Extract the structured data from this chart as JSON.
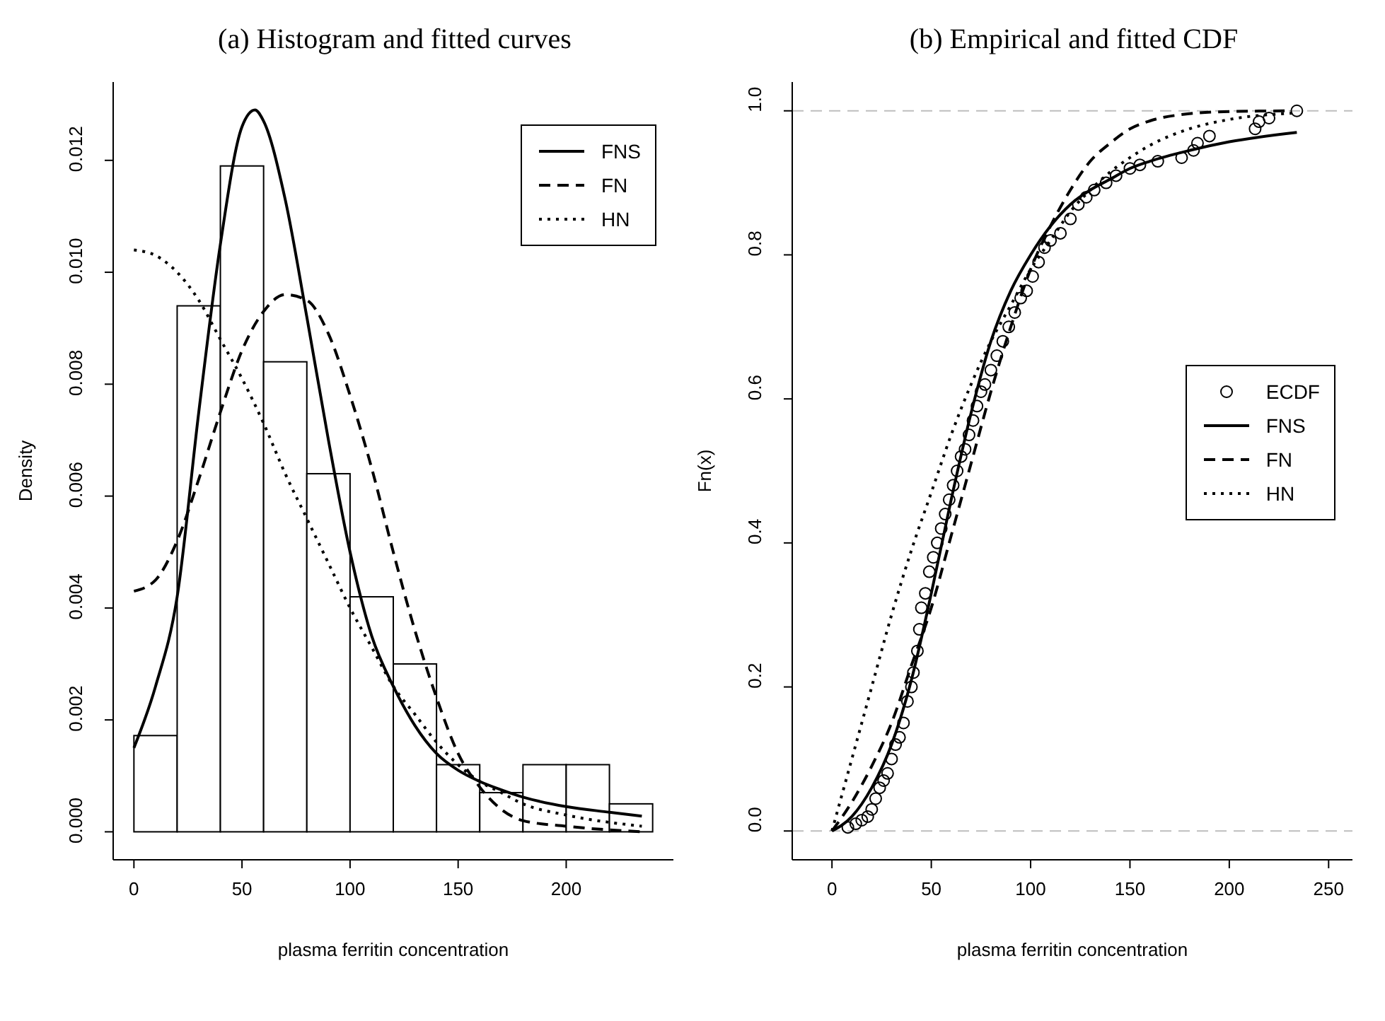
{
  "chart_data": [
    {
      "type": "histogram",
      "title": "(a) Histogram and fitted curves",
      "xlabel": "plasma ferritin concentration",
      "ylabel": "Density",
      "color": "#ffffff",
      "bins": [
        0,
        20,
        40,
        60,
        80,
        100,
        120,
        140,
        160,
        180,
        200,
        220,
        240
      ],
      "values": [
        0.00172,
        0.0094,
        0.0119,
        0.0084,
        0.0064,
        0.0042,
        0.003,
        0.0012,
        0.0007,
        0.0012,
        0.0012,
        0.0005
      ],
      "series": [
        {
          "name": "FNS",
          "type": "line",
          "line_style": "solid",
          "color": "#000000",
          "x": [
            0,
            10,
            20,
            30,
            40,
            50,
            56,
            60,
            70,
            80,
            90,
            100,
            110,
            120,
            130,
            140,
            150,
            160,
            170,
            180,
            200,
            220,
            235
          ],
          "values": [
            0.0015,
            0.0026,
            0.0042,
            0.0075,
            0.0105,
            0.0126,
            0.0129,
            0.0127,
            0.0113,
            0.0092,
            0.007,
            0.005,
            0.0035,
            0.0026,
            0.0019,
            0.0014,
            0.0011,
            0.0009,
            0.00075,
            0.00062,
            0.00045,
            0.00035,
            0.00028
          ]
        },
        {
          "name": "FN",
          "type": "line",
          "line_style": "dashed",
          "color": "#000000",
          "x": [
            0,
            10,
            20,
            30,
            40,
            50,
            60,
            70,
            80,
            90,
            100,
            110,
            120,
            130,
            140,
            150,
            160,
            170,
            180,
            200,
            235
          ],
          "values": [
            0.0043,
            0.0045,
            0.0052,
            0.0063,
            0.0075,
            0.0086,
            0.0093,
            0.0096,
            0.0095,
            0.0089,
            0.0078,
            0.0065,
            0.005,
            0.0036,
            0.0024,
            0.0014,
            0.0008,
            0.0004,
            0.0002,
            0.0001,
            0
          ]
        },
        {
          "name": "HN",
          "type": "line",
          "line_style": "dotted",
          "color": "#000000",
          "x": [
            0,
            10,
            20,
            30,
            40,
            50,
            60,
            70,
            80,
            90,
            100,
            110,
            120,
            130,
            140,
            150,
            160,
            170,
            180,
            200,
            235
          ],
          "values": [
            0.0104,
            0.0103,
            0.01,
            0.0095,
            0.0088,
            0.0081,
            0.0073,
            0.0064,
            0.0056,
            0.0048,
            0.004,
            0.0033,
            0.0026,
            0.0021,
            0.0016,
            0.0012,
            0.0009,
            0.0007,
            0.0005,
            0.0003,
            0.0001
          ]
        }
      ],
      "xlim": [
        -9.6,
        249.6
      ],
      "xticks": [
        0,
        50,
        100,
        150,
        200
      ],
      "ylim": [
        -0.0005,
        0.0134
      ],
      "yticks": [
        {
          "value": 0,
          "label": "0.000"
        },
        0.002,
        0.004,
        0.006,
        0.008,
        {
          "value": 0.01,
          "label": "0.010"
        },
        0.012
      ],
      "legend": "top right"
    },
    {
      "type": "line",
      "title": "(b) Empirical and fitted CDF",
      "xlabel": "plasma ferritin concentration",
      "ylabel": "Fn(x)",
      "series": [
        {
          "name": "ECDF",
          "type": "scatter",
          "marker": "circle",
          "color": "#000000",
          "x": [
            8,
            12,
            15,
            18,
            20,
            22,
            24,
            26,
            28,
            30,
            32,
            34,
            36,
            38,
            40,
            41,
            43,
            44,
            45,
            47,
            49,
            51,
            53,
            55,
            57,
            59,
            61,
            63,
            65,
            67,
            69,
            71,
            73,
            75,
            77,
            80,
            83,
            86,
            89,
            92,
            95,
            98,
            101,
            104,
            107,
            110,
            115,
            120,
            124,
            128,
            132,
            138,
            143,
            150,
            155,
            164,
            176,
            182,
            184,
            190,
            213,
            215,
            220,
            234
          ],
          "values": [
            0.005,
            0.01,
            0.015,
            0.02,
            0.03,
            0.045,
            0.06,
            0.07,
            0.08,
            0.1,
            0.12,
            0.13,
            0.15,
            0.18,
            0.2,
            0.22,
            0.25,
            0.28,
            0.31,
            0.33,
            0.36,
            0.38,
            0.4,
            0.42,
            0.44,
            0.46,
            0.48,
            0.5,
            0.52,
            0.53,
            0.55,
            0.57,
            0.59,
            0.61,
            0.62,
            0.64,
            0.66,
            0.68,
            0.7,
            0.72,
            0.74,
            0.75,
            0.77,
            0.79,
            0.81,
            0.82,
            0.83,
            0.85,
            0.87,
            0.88,
            0.89,
            0.9,
            0.91,
            0.92,
            0.925,
            0.93,
            0.935,
            0.945,
            0.955,
            0.965,
            0.975,
            0.985,
            0.99,
            1.0
          ]
        },
        {
          "name": "FNS",
          "type": "line",
          "line_style": "solid",
          "color": "#000000",
          "x": [
            0,
            10,
            20,
            30,
            40,
            50,
            60,
            70,
            80,
            90,
            100,
            110,
            120,
            130,
            140,
            150,
            160,
            180,
            200,
            234
          ],
          "values": [
            0,
            0.02,
            0.06,
            0.12,
            0.21,
            0.33,
            0.46,
            0.58,
            0.68,
            0.75,
            0.8,
            0.84,
            0.87,
            0.89,
            0.905,
            0.92,
            0.93,
            0.945,
            0.957,
            0.97
          ]
        },
        {
          "name": "FN",
          "type": "line",
          "line_style": "dashed",
          "color": "#000000",
          "x": [
            0,
            10,
            20,
            30,
            40,
            50,
            60,
            70,
            80,
            90,
            100,
            110,
            120,
            130,
            140,
            150,
            160,
            180,
            200,
            230
          ],
          "values": [
            0,
            0.04,
            0.09,
            0.15,
            0.23,
            0.31,
            0.41,
            0.51,
            0.61,
            0.7,
            0.78,
            0.84,
            0.89,
            0.93,
            0.955,
            0.975,
            0.986,
            0.996,
            0.999,
            1.0
          ]
        },
        {
          "name": "HN",
          "type": "line",
          "line_style": "dotted",
          "color": "#000000",
          "x": [
            0,
            10,
            20,
            30,
            40,
            50,
            60,
            70,
            80,
            90,
            100,
            110,
            120,
            130,
            140,
            150,
            160,
            180,
            200,
            234
          ],
          "values": [
            0,
            0.1,
            0.2,
            0.3,
            0.39,
            0.47,
            0.55,
            0.62,
            0.68,
            0.73,
            0.78,
            0.82,
            0.86,
            0.89,
            0.915,
            0.935,
            0.952,
            0.975,
            0.988,
            0.997
          ]
        }
      ],
      "ref_lines": [
        {
          "axis": "y",
          "value": 0,
          "color": "#bebebe",
          "line_style": "dashed"
        },
        {
          "axis": "y",
          "value": 1,
          "color": "#bebebe",
          "line_style": "dashed"
        }
      ],
      "xlim": [
        -20,
        262
      ],
      "xticks": [
        0,
        50,
        100,
        150,
        200,
        250
      ],
      "ylim": [
        -0.04,
        1.04
      ],
      "yticks": [
        {
          "value": 0,
          "label": "0.0"
        },
        0.2,
        0.4,
        0.6,
        0.8,
        {
          "value": 1,
          "label": "1.0"
        }
      ],
      "legend": "right"
    }
  ]
}
